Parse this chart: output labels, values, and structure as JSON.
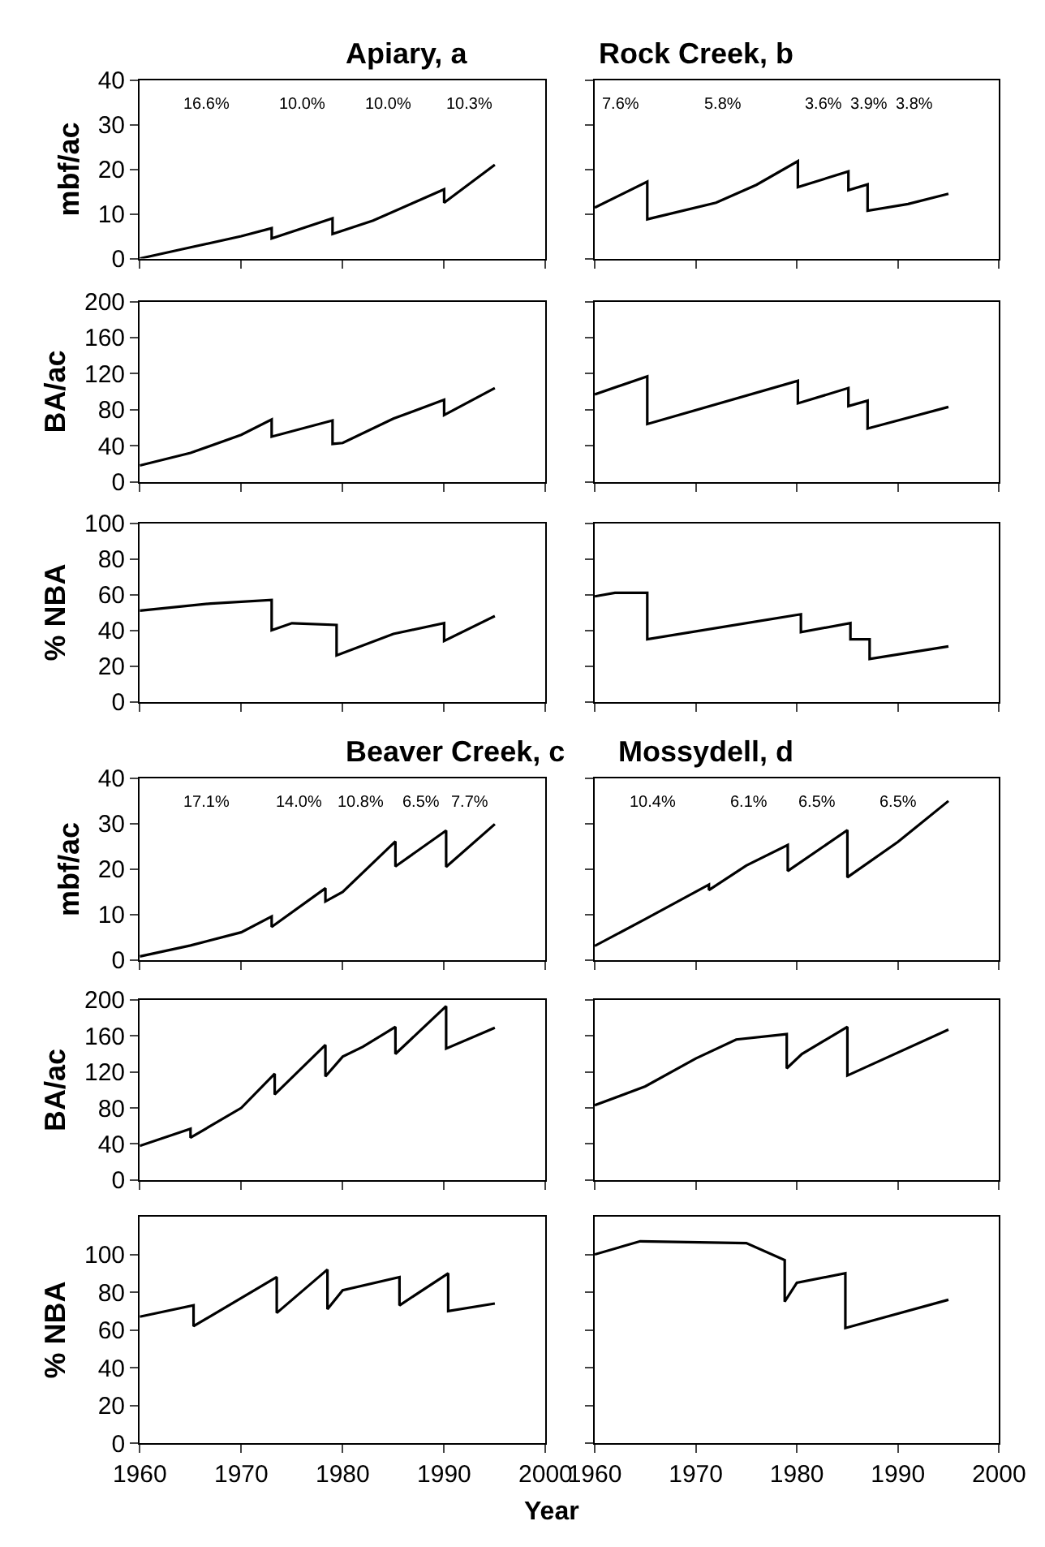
{
  "chart_data": [
    {
      "type": "line",
      "title": "Apiary, a",
      "ylabel": "mbf/ac",
      "color": "#000000",
      "x": [
        1960,
        1965,
        1970,
        1973,
        1973,
        1979,
        1979,
        1983,
        1987,
        1990,
        1990,
        1995
      ],
      "values": [
        0,
        2.5,
        5,
        6.8,
        4.5,
        9,
        5.5,
        8.5,
        12.5,
        15.5,
        12.5,
        21
      ],
      "xlim": [
        1960,
        2000
      ],
      "xticks": [
        1960,
        1970,
        1980,
        1990,
        2000
      ],
      "ylim": [
        0,
        40
      ],
      "yticks": [
        0,
        10,
        20,
        30,
        40
      ],
      "tick_labels": "y",
      "annotations": [
        "16.6%",
        "10.0%",
        "10.0%",
        "10.3%"
      ]
    },
    {
      "type": "line",
      "title": "Rock Creek, b",
      "color": "#000000",
      "x": [
        1960,
        1965.2,
        1965.2,
        1972,
        1976,
        1980.1,
        1980.1,
        1985.1,
        1985.1,
        1987,
        1987,
        1991,
        1995
      ],
      "values": [
        11.4,
        17.2,
        8.8,
        12.5,
        16.5,
        21.8,
        16,
        19.5,
        15.3,
        16.6,
        10.7,
        12.2,
        14.5
      ],
      "xlim": [
        1960,
        2000
      ],
      "xticks": [
        1960,
        1970,
        1980,
        1990,
        2000
      ],
      "ylim": [
        0,
        40
      ],
      "yticks": [
        0,
        10,
        20,
        30,
        40
      ],
      "tick_labels": false,
      "annotations": [
        "7.6%",
        "5.8%",
        "3.6%",
        "3.9%",
        "3.8%"
      ]
    },
    {
      "type": "line",
      "ylabel": "BA/ac",
      "color": "#000000",
      "x": [
        1960,
        1965,
        1970,
        1973,
        1973,
        1979,
        1979,
        1980,
        1985,
        1990,
        1990,
        1995
      ],
      "values": [
        18,
        32,
        52,
        69,
        50,
        68,
        42,
        43,
        70,
        91,
        74,
        104
      ],
      "xlim": [
        1960,
        2000
      ],
      "xticks": [
        1960,
        1970,
        1980,
        1990,
        2000
      ],
      "ylim": [
        0,
        200
      ],
      "yticks": [
        0,
        40,
        80,
        120,
        160,
        200
      ],
      "tick_labels": "y"
    },
    {
      "type": "line",
      "color": "#000000",
      "x": [
        1960,
        1965.2,
        1965.2,
        1980.1,
        1980.1,
        1985.1,
        1985.1,
        1987,
        1987,
        1995
      ],
      "values": [
        97,
        117,
        64,
        112,
        87,
        104,
        84,
        90,
        59,
        83
      ],
      "xlim": [
        1960,
        2000
      ],
      "xticks": [
        1960,
        1970,
        1980,
        1990,
        2000
      ],
      "ylim": [
        0,
        200
      ],
      "yticks": [
        0,
        40,
        80,
        120,
        160,
        200
      ],
      "tick_labels": false
    },
    {
      "type": "line",
      "ylabel": "% NBA",
      "color": "#000000",
      "x": [
        1960,
        1967,
        1973,
        1973,
        1975,
        1979.4,
        1979.4,
        1985,
        1990,
        1990,
        1995
      ],
      "values": [
        51,
        55,
        57,
        40,
        44,
        43,
        26,
        38,
        44,
        34,
        48
      ],
      "xlim": [
        1960,
        2000
      ],
      "xticks": [
        1960,
        1970,
        1980,
        1990,
        2000
      ],
      "ylim": [
        0,
        100
      ],
      "yticks": [
        0,
        20,
        40,
        60,
        80,
        100
      ],
      "tick_labels": "y"
    },
    {
      "type": "line",
      "color": "#000000",
      "x": [
        1960,
        1962,
        1965.2,
        1965.2,
        1980.4,
        1980.4,
        1985.3,
        1985.3,
        1987.2,
        1987.2,
        1995
      ],
      "values": [
        59,
        61,
        61,
        35,
        49,
        39,
        44,
        35,
        35,
        24,
        31
      ],
      "xlim": [
        1960,
        2000
      ],
      "xticks": [
        1960,
        1970,
        1980,
        1990,
        2000
      ],
      "ylim": [
        0,
        100
      ],
      "yticks": [
        0,
        20,
        40,
        60,
        80,
        100
      ],
      "tick_labels": false
    },
    {
      "type": "line",
      "title": "Beaver Creek, c",
      "ylabel": "mbf/ac",
      "color": "#000000",
      "x": [
        1960,
        1965,
        1970,
        1973,
        1973,
        1978.3,
        1978.3,
        1980,
        1985.2,
        1985.2,
        1990.2,
        1990.2,
        1995
      ],
      "values": [
        0.8,
        3.2,
        6.1,
        9.6,
        7.3,
        15.8,
        12.9,
        15,
        26.1,
        20.6,
        28.5,
        20.5,
        29.9
      ],
      "xlim": [
        1960,
        2000
      ],
      "xticks": [
        1960,
        1970,
        1980,
        1990,
        2000
      ],
      "ylim": [
        0,
        40
      ],
      "yticks": [
        0,
        10,
        20,
        30,
        40
      ],
      "tick_labels": "y",
      "annotations": [
        "17.1%",
        "14.0%",
        "10.8%",
        "6.5%",
        "7.7%"
      ]
    },
    {
      "type": "line",
      "title": "Mossydell, d",
      "color": "#000000",
      "x": [
        1960,
        1965,
        1971.3,
        1971.3,
        1975,
        1979.1,
        1979.1,
        1985,
        1985,
        1990,
        1995
      ],
      "values": [
        3.1,
        9,
        16.6,
        15.4,
        20.8,
        25.3,
        19.6,
        28.6,
        18.2,
        26,
        35
      ],
      "xlim": [
        1960,
        2000
      ],
      "xticks": [
        1960,
        1970,
        1980,
        1990,
        2000
      ],
      "ylim": [
        0,
        40
      ],
      "yticks": [
        0,
        10,
        20,
        30,
        40
      ],
      "tick_labels": false,
      "annotations": [
        "10.4%",
        "6.1%",
        "6.5%",
        "6.5%"
      ]
    },
    {
      "type": "line",
      "ylabel": "BA/ac",
      "color": "#000000",
      "x": [
        1960,
        1965,
        1965,
        1970,
        1973.3,
        1973.3,
        1978.3,
        1978.3,
        1980,
        1982,
        1985.2,
        1985.2,
        1990.2,
        1990.2,
        1995
      ],
      "values": [
        38,
        57,
        47,
        80,
        118,
        95,
        150,
        115,
        137,
        148,
        170,
        140,
        193,
        146,
        169
      ],
      "xlim": [
        1960,
        2000
      ],
      "xticks": [
        1960,
        1970,
        1980,
        1990,
        2000
      ],
      "ylim": [
        0,
        200
      ],
      "yticks": [
        0,
        40,
        80,
        120,
        160,
        200
      ],
      "tick_labels": "y"
    },
    {
      "type": "line",
      "color": "#000000",
      "x": [
        1960,
        1965,
        1970,
        1974,
        1979,
        1979,
        1980.5,
        1985,
        1985,
        1995
      ],
      "values": [
        83,
        104,
        135,
        156,
        162,
        124,
        140,
        170,
        116,
        167
      ],
      "xlim": [
        1960,
        2000
      ],
      "xticks": [
        1960,
        1970,
        1980,
        1990,
        2000
      ],
      "ylim": [
        0,
        200
      ],
      "yticks": [
        0,
        40,
        80,
        120,
        160,
        200
      ],
      "tick_labels": false
    },
    {
      "type": "line",
      "ylabel": "% NBA",
      "color": "#000000",
      "x": [
        1960,
        1965.3,
        1965.3,
        1973.5,
        1973.5,
        1978.5,
        1978.5,
        1980,
        1985.6,
        1985.6,
        1990.4,
        1990.4,
        1995
      ],
      "values": [
        67,
        73,
        62,
        88,
        69,
        92,
        71,
        81,
        88,
        73,
        90,
        70,
        74
      ],
      "xlim": [
        1960,
        2000
      ],
      "xticks": [
        1960,
        1970,
        1980,
        1990,
        2000
      ],
      "ylim": [
        0,
        120
      ],
      "yticks": [
        0,
        20,
        40,
        60,
        80,
        100
      ]
    },
    {
      "type": "line",
      "xlabel": "Year",
      "color": "#000000",
      "x": [
        1960,
        1964.5,
        1975,
        1978.8,
        1978.8,
        1980,
        1984.8,
        1984.8,
        1995
      ],
      "values": [
        100,
        107,
        106,
        97,
        75,
        85,
        90,
        61,
        76
      ],
      "xlim": [
        1960,
        2000
      ],
      "xticks": [
        1960,
        1970,
        1980,
        1990,
        2000
      ],
      "ylim": [
        0,
        120
      ],
      "yticks": [
        0,
        20,
        40,
        60,
        80,
        100
      ],
      "tick_labels": "x"
    }
  ]
}
